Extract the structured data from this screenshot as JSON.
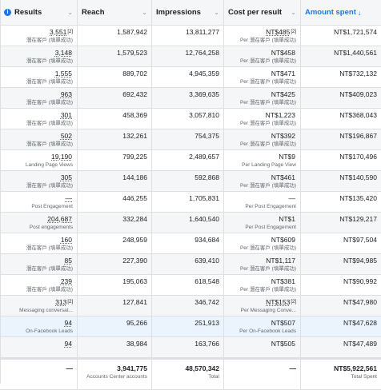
{
  "header": {
    "columns": [
      {
        "label": "Results"
      },
      {
        "label": "Reach"
      },
      {
        "label": "Impressions"
      },
      {
        "label": "Cost per result"
      },
      {
        "label": "Amount spent"
      }
    ]
  },
  "rows": [
    {
      "results": "3,551",
      "results_sup": "[2]",
      "results_sub": "潛在客戶 (填單成功)",
      "reach": "1,587,942",
      "impressions": "13,811,277",
      "cpr": "NT$485",
      "cpr_sup": "[2]",
      "cpr_sub": "Per 潛在客戶 (填單成功)",
      "spent": "NT$1,721,574"
    },
    {
      "results": "3,148",
      "results_sup": "",
      "results_sub": "潛在客戶 (填單成功)",
      "reach": "1,579,523",
      "impressions": "12,764,258",
      "cpr": "NT$458",
      "cpr_sup": "",
      "cpr_sub": "Per 潛在客戶 (填單成功)",
      "spent": "NT$1,440,561"
    },
    {
      "results": "1,555",
      "results_sup": "",
      "results_sub": "潛在客戶 (填單成功)",
      "reach": "889,702",
      "impressions": "4,945,359",
      "cpr": "NT$471",
      "cpr_sup": "",
      "cpr_sub": "Per 潛在客戶 (填單成功)",
      "spent": "NT$732,132"
    },
    {
      "results": "963",
      "results_sup": "",
      "results_sub": "潛在客戶 (填單成功)",
      "reach": "692,432",
      "impressions": "3,369,635",
      "cpr": "NT$425",
      "cpr_sup": "",
      "cpr_sub": "Per 潛在客戶 (填單成功)",
      "spent": "NT$409,023"
    },
    {
      "results": "301",
      "results_sup": "",
      "results_sub": "潛在客戶 (填單成功)",
      "reach": "458,369",
      "impressions": "3,057,810",
      "cpr": "NT$1,223",
      "cpr_sup": "",
      "cpr_sub": "Per 潛在客戶 (填單成功)",
      "spent": "NT$368,043"
    },
    {
      "results": "502",
      "results_sup": "",
      "results_sub": "潛在客戶 (填單成功)",
      "reach": "132,261",
      "impressions": "754,375",
      "cpr": "NT$392",
      "cpr_sup": "",
      "cpr_sub": "Per 潛在客戶 (填單成功)",
      "spent": "NT$196,867"
    },
    {
      "results": "19,190",
      "results_sup": "",
      "results_sub": "Landing Page Views",
      "reach": "799,225",
      "impressions": "2,489,657",
      "cpr": "NT$9",
      "cpr_sup": "",
      "cpr_sub": "Per Landing Page View",
      "spent": "NT$170,496"
    },
    {
      "results": "305",
      "results_sup": "",
      "results_sub": "潛在客戶 (填單成功)",
      "reach": "144,186",
      "impressions": "592,868",
      "cpr": "NT$461",
      "cpr_sup": "",
      "cpr_sub": "Per 潛在客戶 (填單成功)",
      "spent": "NT$140,590"
    },
    {
      "results": "—",
      "results_sup": "",
      "results_sub": "Post Engagement",
      "reach": "446,255",
      "impressions": "1,705,831",
      "cpr": "—",
      "cpr_sup": "",
      "cpr_sub": "Per Post Engagement",
      "spent": "NT$135,420"
    },
    {
      "results": "204,687",
      "results_sup": "",
      "results_sub": "Post engagements",
      "reach": "332,284",
      "impressions": "1,640,540",
      "cpr": "NT$1",
      "cpr_sup": "",
      "cpr_sub": "Per Post Engagement",
      "spent": "NT$129,217"
    },
    {
      "results": "160",
      "results_sup": "",
      "results_sub": "潛在客戶 (填單成功)",
      "reach": "248,959",
      "impressions": "934,684",
      "cpr": "NT$609",
      "cpr_sup": "",
      "cpr_sub": "Per 潛在客戶 (填單成功)",
      "spent": "NT$97,504"
    },
    {
      "results": "85",
      "results_sup": "",
      "results_sub": "潛在客戶 (填單成功)",
      "reach": "227,390",
      "impressions": "639,410",
      "cpr": "NT$1,117",
      "cpr_sup": "",
      "cpr_sub": "Per 潛在客戶 (填單成功)",
      "spent": "NT$94,985"
    },
    {
      "results": "239",
      "results_sup": "",
      "results_sub": "潛在客戶 (填單成功)",
      "reach": "195,063",
      "impressions": "618,548",
      "cpr": "NT$381",
      "cpr_sup": "",
      "cpr_sub": "Per 潛在客戶 (填單成功)",
      "spent": "NT$90,992"
    },
    {
      "results": "313",
      "results_sup": "[2]",
      "results_sub": "Messaging conversat...",
      "reach": "127,841",
      "impressions": "346,742",
      "cpr": "NT$153",
      "cpr_sup": "[2]",
      "cpr_sub": "Per Messaging Conve...",
      "spent": "NT$47,980"
    },
    {
      "results": "94",
      "results_sup": "",
      "results_sub": "On-Facebook Leads",
      "reach": "95,266",
      "impressions": "251,913",
      "cpr": "NT$507",
      "cpr_sup": "",
      "cpr_sub": "Per On-Facebook Leads",
      "spent": "NT$47,628"
    },
    {
      "results": "94",
      "results_sup": "",
      "results_sub": "",
      "reach": "38,984",
      "impressions": "163,766",
      "cpr": "NT$505",
      "cpr_sup": "",
      "cpr_sub": "",
      "spent": "NT$47,489"
    }
  ],
  "totals": {
    "results": "—",
    "reach": "3,941,775",
    "reach_sub": "Accounts Center accounts",
    "impressions": "48,570,342",
    "impressions_sub": "Total",
    "cpr": "—",
    "spent": "NT$5,922,561",
    "spent_sub": "Total Spent"
  }
}
